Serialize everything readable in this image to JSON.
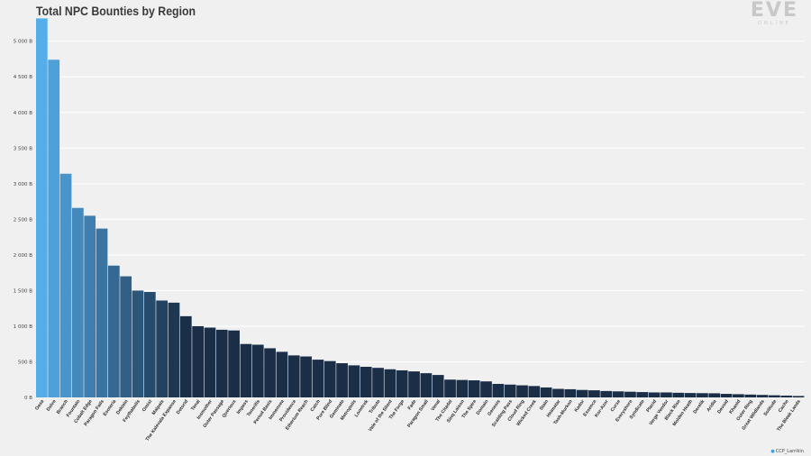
{
  "chart_data": {
    "type": "bar",
    "title": "Total NPC Bounties by Region",
    "xlabel": "",
    "ylabel": "",
    "ylim": [
      0,
      5300
    ],
    "ytick_values": [
      0,
      500,
      1000,
      1500,
      2000,
      2500,
      3000,
      3500,
      4000,
      4500,
      5000
    ],
    "ytick_labels": [
      "0 B",
      "500 B",
      "1 000 B",
      "1 500 B",
      "2 000 B",
      "2 500 B",
      "3 000 B",
      "3 500 B",
      "4 000 B",
      "4 500 B",
      "5 000 B"
    ],
    "grid": true,
    "colors": {
      "light": "#55aeea",
      "dark": "#1a2e48",
      "grid": "#ffffff"
    },
    "categories": [
      "Oasa",
      "Delve",
      "Branch",
      "Fountain",
      "Cobalt Edge",
      "Paragon Fails",
      "Esoteria",
      "Deklein",
      "Feythabolis",
      "Omist",
      "Malpais",
      "The Kalevala Expanse",
      "Detorid",
      "Tenal",
      "Insmother",
      "Outer Passage",
      "Querious",
      "Impass",
      "Tenerifis",
      "Period Basis",
      "Immensea",
      "Providence",
      "Etherium Reach",
      "Catch",
      "Pure Blind",
      "Geminate",
      "Metropolis",
      "Lonetrek",
      "Tribute",
      "Vale of the Silent",
      "The Forge",
      "Fade",
      "Paragon Small",
      "Venal",
      "The Citadel",
      "Sinq Laison",
      "The Spire",
      "Domain",
      "Genesis",
      "Scalding Pass",
      "Cloud Ring",
      "Wicked Creek",
      "Stain",
      "Heimatar",
      "Tash-Murkon",
      "Kador",
      "Essence",
      "Kor-Azor",
      "Curse",
      "Everyshore",
      "Syndicate",
      "Placid",
      "Verge Vendor",
      "Black Rise",
      "Molden Heath",
      "Derelik",
      "Aridia",
      "Devoid",
      "Khanid",
      "Outer Ring",
      "Great Wildlands",
      "Solitude",
      "Cache",
      "The Bleak Lands"
    ],
    "values": [
      5320,
      4740,
      3140,
      2660,
      2550,
      2370,
      1850,
      1700,
      1500,
      1480,
      1360,
      1330,
      1140,
      1000,
      980,
      950,
      940,
      750,
      740,
      690,
      640,
      590,
      575,
      530,
      510,
      480,
      450,
      430,
      415,
      395,
      380,
      365,
      340,
      315,
      250,
      245,
      240,
      225,
      190,
      180,
      170,
      160,
      140,
      120,
      115,
      105,
      100,
      90,
      85,
      80,
      75,
      70,
      70,
      65,
      62,
      60,
      58,
      50,
      45,
      40,
      35,
      30,
      25,
      20
    ]
  },
  "credit": {
    "handle": "CCP_Larrikin"
  },
  "logo_text": {
    "wordmark": "EVE",
    "sub": "ONLINE"
  }
}
